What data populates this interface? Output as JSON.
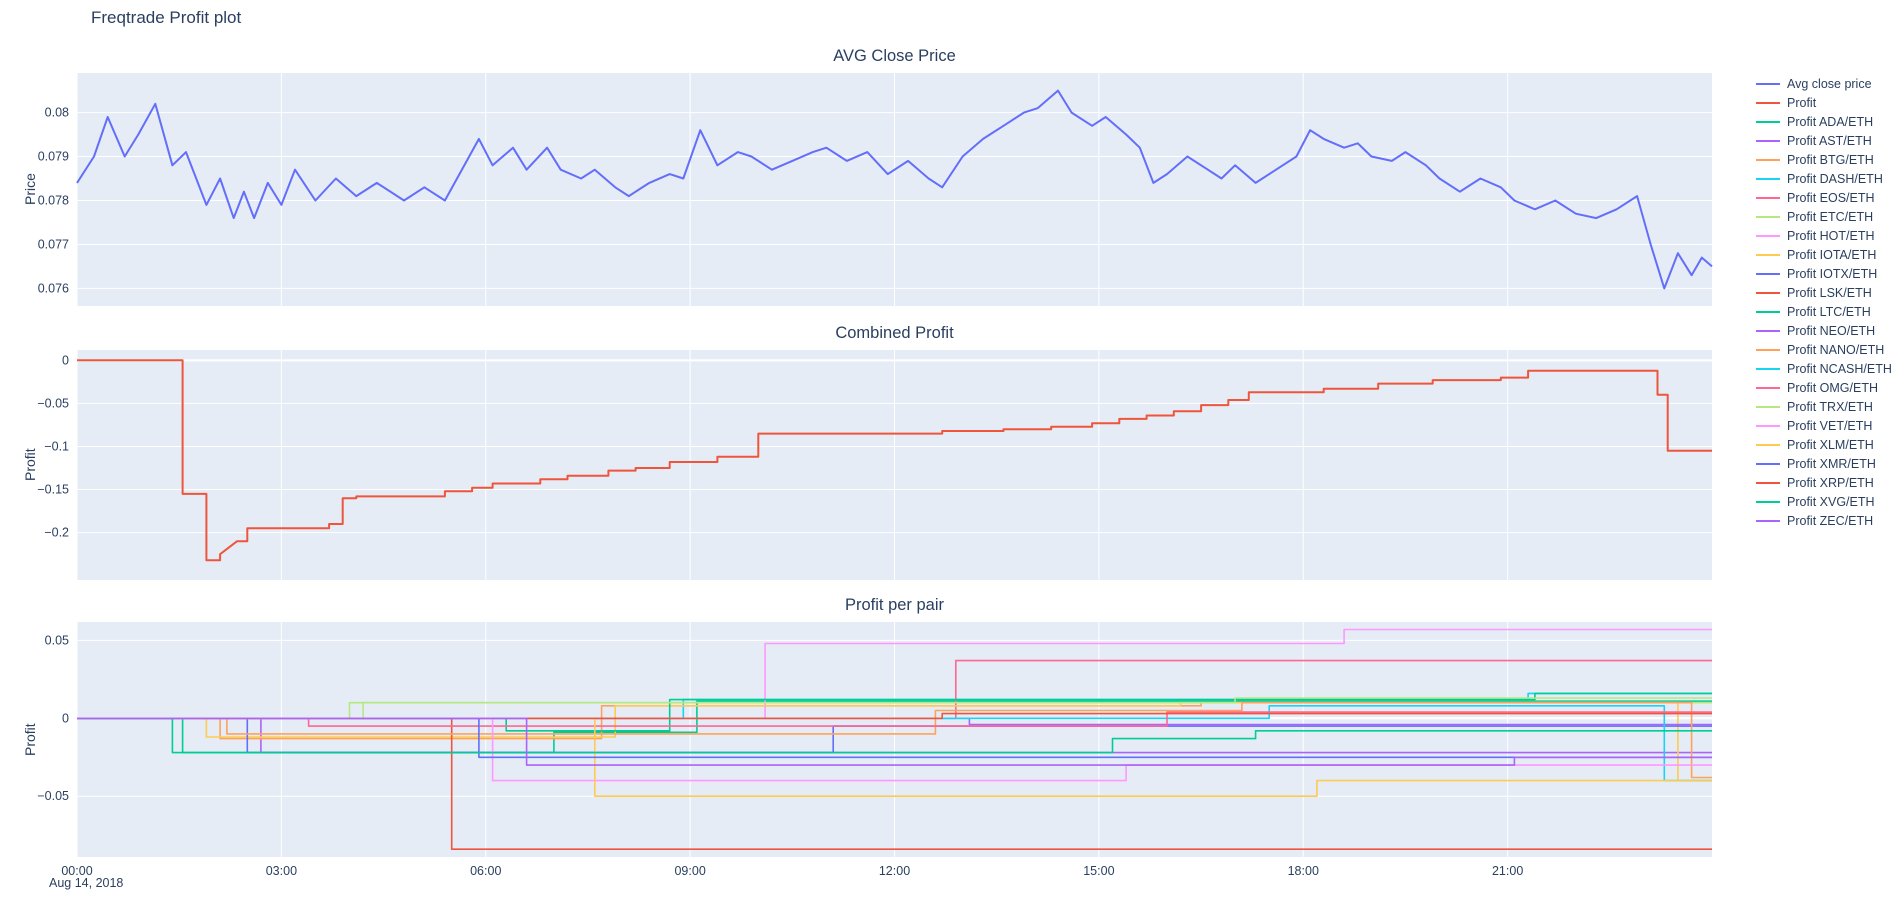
{
  "page": {
    "title": "Freqtrade Profit plot",
    "date_annotation": "Aug 14, 2018",
    "legend_position": "right"
  },
  "colors": {
    "plot_bg": "#E5ECF6",
    "grid": "#FFFFFF",
    "text": "#2A3F5F",
    "avg_close": "#636EFA",
    "profit": "#EF553B"
  },
  "legend": {
    "items": [
      {
        "label": "Avg close price",
        "color": "#636EFA"
      },
      {
        "label": "Profit",
        "color": "#EF553B"
      },
      {
        "label": "Profit ADA/ETH",
        "color": "#00CC96"
      },
      {
        "label": "Profit AST/ETH",
        "color": "#AB63FA"
      },
      {
        "label": "Profit BTG/ETH",
        "color": "#FFA15A"
      },
      {
        "label": "Profit DASH/ETH",
        "color": "#19D3F3"
      },
      {
        "label": "Profit EOS/ETH",
        "color": "#FF6692"
      },
      {
        "label": "Profit ETC/ETH",
        "color": "#B6E880"
      },
      {
        "label": "Profit HOT/ETH",
        "color": "#FF97FF"
      },
      {
        "label": "Profit IOTA/ETH",
        "color": "#FECB52"
      },
      {
        "label": "Profit IOTX/ETH",
        "color": "#636EFA"
      },
      {
        "label": "Profit LSK/ETH",
        "color": "#EF553B"
      },
      {
        "label": "Profit LTC/ETH",
        "color": "#00CC96"
      },
      {
        "label": "Profit NEO/ETH",
        "color": "#AB63FA"
      },
      {
        "label": "Profit NANO/ETH",
        "color": "#FFA15A"
      },
      {
        "label": "Profit NCASH/ETH",
        "color": "#19D3F3"
      },
      {
        "label": "Profit OMG/ETH",
        "color": "#FF6692"
      },
      {
        "label": "Profit TRX/ETH",
        "color": "#B6E880"
      },
      {
        "label": "Profit VET/ETH",
        "color": "#FF97FF"
      },
      {
        "label": "Profit XLM/ETH",
        "color": "#FECB52"
      },
      {
        "label": "Profit XMR/ETH",
        "color": "#636EFA"
      },
      {
        "label": "Profit XRP/ETH",
        "color": "#EF553B"
      },
      {
        "label": "Profit XVG/ETH",
        "color": "#00CC96"
      },
      {
        "label": "Profit ZEC/ETH",
        "color": "#AB63FA"
      }
    ]
  },
  "chart_data": [
    {
      "type": "line",
      "title": "AVG Close Price",
      "xlabel": "",
      "ylabel": "Price",
      "xlim": [
        0,
        24
      ],
      "ylim": [
        0.0756,
        0.0809
      ],
      "xticks": [
        0,
        3,
        6,
        9,
        12,
        15,
        18,
        21
      ],
      "yticks": [
        0.076,
        0.077,
        0.078,
        0.079,
        0.08
      ],
      "ytick_labels": [
        "0.076",
        "0.077",
        "0.078",
        "0.079",
        "0.08"
      ],
      "grid": true,
      "line_width": 2,
      "series": [
        {
          "name": "Avg close price",
          "color": "#636EFA",
          "x": [
            0,
            0.25,
            0.45,
            0.7,
            0.9,
            1.15,
            1.4,
            1.6,
            1.9,
            2.1,
            2.3,
            2.45,
            2.6,
            2.8,
            3.0,
            3.2,
            3.5,
            3.8,
            4.1,
            4.4,
            4.8,
            5.1,
            5.4,
            5.9,
            6.1,
            6.4,
            6.6,
            6.9,
            7.1,
            7.4,
            7.6,
            7.9,
            8.1,
            8.4,
            8.7,
            8.9,
            9.15,
            9.4,
            9.7,
            9.9,
            10.2,
            10.5,
            10.8,
            11.0,
            11.3,
            11.6,
            11.9,
            12.2,
            12.5,
            12.7,
            13.0,
            13.3,
            13.6,
            13.9,
            14.1,
            14.4,
            14.6,
            14.9,
            15.1,
            15.4,
            15.6,
            15.8,
            16.0,
            16.3,
            16.6,
            16.8,
            17.0,
            17.3,
            17.6,
            17.9,
            18.1,
            18.3,
            18.6,
            18.8,
            19.0,
            19.3,
            19.5,
            19.8,
            20.0,
            20.3,
            20.6,
            20.9,
            21.1,
            21.4,
            21.7,
            22.0,
            22.3,
            22.6,
            22.9,
            23.1,
            23.3,
            23.5,
            23.7,
            23.85,
            24
          ],
          "y": [
            0.0784,
            0.079,
            0.0799,
            0.079,
            0.0795,
            0.0802,
            0.0788,
            0.0791,
            0.0779,
            0.0785,
            0.0776,
            0.0782,
            0.0776,
            0.0784,
            0.0779,
            0.0787,
            0.078,
            0.0785,
            0.0781,
            0.0784,
            0.078,
            0.0783,
            0.078,
            0.0794,
            0.0788,
            0.0792,
            0.0787,
            0.0792,
            0.0787,
            0.0785,
            0.0787,
            0.0783,
            0.0781,
            0.0784,
            0.0786,
            0.0785,
            0.0796,
            0.0788,
            0.0791,
            0.079,
            0.0787,
            0.0789,
            0.0791,
            0.0792,
            0.0789,
            0.0791,
            0.0786,
            0.0789,
            0.0785,
            0.0783,
            0.079,
            0.0794,
            0.0797,
            0.08,
            0.0801,
            0.0805,
            0.08,
            0.0797,
            0.0799,
            0.0795,
            0.0792,
            0.0784,
            0.0786,
            0.079,
            0.0787,
            0.0785,
            0.0788,
            0.0784,
            0.0787,
            0.079,
            0.0796,
            0.0794,
            0.0792,
            0.0793,
            0.079,
            0.0789,
            0.0791,
            0.0788,
            0.0785,
            0.0782,
            0.0785,
            0.0783,
            0.078,
            0.0778,
            0.078,
            0.0777,
            0.0776,
            0.0778,
            0.0781,
            0.077,
            0.076,
            0.0768,
            0.0763,
            0.0767,
            0.0765
          ]
        }
      ]
    },
    {
      "type": "line",
      "title": "Combined Profit",
      "xlabel": "",
      "ylabel": "Profit",
      "xlim": [
        0,
        24
      ],
      "ylim": [
        -0.255,
        0.012
      ],
      "xticks": [
        0,
        3,
        6,
        9,
        12,
        15,
        18,
        21
      ],
      "yticks": [
        0,
        -0.05,
        -0.1,
        -0.15,
        -0.2
      ],
      "ytick_labels": [
        "0",
        "−0.05",
        "−0.1",
        "−0.15",
        "−0.2"
      ],
      "grid": true,
      "line_width": 2,
      "series": [
        {
          "name": "Profit",
          "color": "#EF553B",
          "x": [
            0,
            1.55,
            1.55,
            1.9,
            1.9,
            2.1,
            2.1,
            2.35,
            2.5,
            2.5,
            3.7,
            3.7,
            3.9,
            3.9,
            4.1,
            4.1,
            5.4,
            5.4,
            5.8,
            5.8,
            6.1,
            6.1,
            6.8,
            6.8,
            7.2,
            7.2,
            7.8,
            7.8,
            8.2,
            8.2,
            8.7,
            8.7,
            9.4,
            9.4,
            10.0,
            10.0,
            12.7,
            12.7,
            13.6,
            13.6,
            14.3,
            14.3,
            14.9,
            14.9,
            15.3,
            15.3,
            15.7,
            15.7,
            16.1,
            16.1,
            16.5,
            16.5,
            16.9,
            16.9,
            17.2,
            17.2,
            18.3,
            18.3,
            19.1,
            19.1,
            19.9,
            19.9,
            20.9,
            20.9,
            21.3,
            21.3,
            23.2,
            23.2,
            23.35,
            23.35,
            24
          ],
          "y": [
            0,
            0,
            -0.155,
            -0.155,
            -0.232,
            -0.232,
            -0.225,
            -0.21,
            -0.21,
            -0.195,
            -0.195,
            -0.19,
            -0.19,
            -0.16,
            -0.16,
            -0.158,
            -0.158,
            -0.152,
            -0.152,
            -0.148,
            -0.148,
            -0.143,
            -0.143,
            -0.138,
            -0.138,
            -0.134,
            -0.134,
            -0.128,
            -0.128,
            -0.125,
            -0.125,
            -0.118,
            -0.118,
            -0.112,
            -0.112,
            -0.085,
            -0.085,
            -0.082,
            -0.082,
            -0.08,
            -0.08,
            -0.077,
            -0.077,
            -0.073,
            -0.073,
            -0.068,
            -0.068,
            -0.064,
            -0.064,
            -0.059,
            -0.059,
            -0.052,
            -0.052,
            -0.046,
            -0.046,
            -0.037,
            -0.037,
            -0.033,
            -0.033,
            -0.027,
            -0.027,
            -0.023,
            -0.023,
            -0.02,
            -0.02,
            -0.012,
            -0.012,
            -0.04,
            -0.04,
            -0.105,
            -0.105
          ]
        }
      ]
    },
    {
      "type": "line",
      "title": "Profit per pair",
      "xlabel": "",
      "ylabel": "Profit",
      "xlim": [
        0,
        24
      ],
      "ylim": [
        -0.089,
        0.0618
      ],
      "xticks": [
        0,
        3,
        6,
        9,
        12,
        15,
        18,
        21
      ],
      "xtick_labels": [
        "00:00",
        "03:00",
        "06:00",
        "09:00",
        "12:00",
        "15:00",
        "18:00",
        "21:00"
      ],
      "yticks": [
        0.05,
        0,
        -0.05
      ],
      "ytick_labels": [
        "0.05",
        "0",
        "−0.05"
      ],
      "grid": true,
      "line_width": 1.6,
      "series": [
        {
          "name": "Profit ADA/ETH",
          "color": "#00CC96",
          "x": [
            0,
            1.55,
            1.55,
            7.0,
            7.0,
            9.1,
            9.1,
            24
          ],
          "y": [
            0,
            0,
            -0.022,
            -0.022,
            -0.009,
            -0.009,
            0.011,
            0.011
          ]
        },
        {
          "name": "Profit AST/ETH",
          "color": "#AB63FA",
          "x": [
            0,
            2.7,
            2.7,
            24
          ],
          "y": [
            0,
            0,
            -0.022,
            -0.022
          ]
        },
        {
          "name": "Profit BTG/ETH",
          "color": "#FFA15A",
          "x": [
            0,
            2.1,
            2.1,
            7.7,
            7.7,
            16.5,
            16.5,
            24
          ],
          "y": [
            0,
            0,
            -0.013,
            -0.013,
            0.008,
            0.008,
            0.01,
            0.01
          ]
        },
        {
          "name": "Profit DASH/ETH",
          "color": "#19D3F3",
          "x": [
            0,
            8.9,
            8.9,
            21.3,
            21.3,
            24
          ],
          "y": [
            0,
            0,
            0.012,
            0.012,
            0.016,
            0.016
          ]
        },
        {
          "name": "Profit EOS/ETH",
          "color": "#FF6692",
          "x": [
            0,
            12.9,
            12.9,
            24
          ],
          "y": [
            0,
            0,
            0.037,
            0.037
          ]
        },
        {
          "name": "Profit ETC/ETH",
          "color": "#B6E880",
          "x": [
            0,
            4.0,
            4.0,
            24
          ],
          "y": [
            0,
            0,
            0.01,
            0.01
          ]
        },
        {
          "name": "Profit HOT/ETH",
          "color": "#FF97FF",
          "x": [
            0,
            10.1,
            10.1,
            18.6,
            18.6,
            24
          ],
          "y": [
            0,
            0,
            0.048,
            0.048,
            0.057,
            0.057
          ]
        },
        {
          "name": "Profit IOTA/ETH",
          "color": "#FECB52",
          "x": [
            0,
            1.9,
            1.9,
            7.9,
            7.9,
            16.2,
            16.2,
            23.5,
            23.5,
            24
          ],
          "y": [
            0,
            0,
            -0.012,
            -0.012,
            0.008,
            0.008,
            0.01,
            0.01,
            -0.04,
            -0.04
          ]
        },
        {
          "name": "Profit IOTX/ETH",
          "color": "#636EFA",
          "x": [
            0,
            2.5,
            2.5,
            11.1,
            11.1,
            24
          ],
          "y": [
            0,
            0,
            -0.022,
            -0.022,
            -0.005,
            -0.005
          ]
        },
        {
          "name": "Profit LSK/ETH",
          "color": "#EF553B",
          "x": [
            0,
            5.5,
            5.5,
            24
          ],
          "y": [
            0,
            0,
            -0.084,
            -0.084
          ]
        },
        {
          "name": "Profit LTC/ETH",
          "color": "#00CC96",
          "x": [
            0,
            6.3,
            6.3,
            8.7,
            8.7,
            21.4,
            21.4,
            24
          ],
          "y": [
            0,
            0,
            -0.008,
            -0.008,
            0.012,
            0.012,
            0.016,
            0.016
          ]
        },
        {
          "name": "Profit NEO/ETH",
          "color": "#AB63FA",
          "x": [
            0,
            13.1,
            13.1,
            24
          ],
          "y": [
            0,
            0,
            -0.004,
            -0.004
          ]
        },
        {
          "name": "Profit NANO/ETH",
          "color": "#FFA15A",
          "x": [
            0,
            2.2,
            2.2,
            12.6,
            12.6,
            17.1,
            17.1,
            23.7,
            23.7,
            24
          ],
          "y": [
            0,
            0,
            -0.01,
            -0.01,
            0.005,
            0.005,
            0.01,
            0.01,
            -0.038,
            -0.038
          ]
        },
        {
          "name": "Profit NCASH/ETH",
          "color": "#19D3F3",
          "x": [
            0,
            17.5,
            17.5,
            23.3,
            23.3,
            24
          ],
          "y": [
            0,
            0,
            0.008,
            0.008,
            -0.04,
            -0.04
          ]
        },
        {
          "name": "Profit OMG/ETH",
          "color": "#FF6692",
          "x": [
            0,
            3.4,
            3.4,
            16.0,
            16.0,
            24
          ],
          "y": [
            0,
            0,
            -0.005,
            -0.005,
            0.004,
            0.004
          ]
        },
        {
          "name": "Profit TRX/ETH",
          "color": "#B6E880",
          "x": [
            0,
            4.2,
            4.2,
            17.0,
            17.0,
            24
          ],
          "y": [
            0,
            0,
            0.01,
            0.01,
            0.013,
            0.013
          ]
        },
        {
          "name": "Profit VET/ETH",
          "color": "#FF97FF",
          "x": [
            0,
            6.1,
            6.1,
            15.4,
            15.4,
            24
          ],
          "y": [
            0,
            0,
            -0.04,
            -0.04,
            -0.03,
            -0.03
          ]
        },
        {
          "name": "Profit XLM/ETH",
          "color": "#FECB52",
          "x": [
            0,
            7.6,
            7.6,
            18.2,
            18.2,
            24
          ],
          "y": [
            0,
            0,
            -0.05,
            -0.05,
            -0.04,
            -0.04
          ]
        },
        {
          "name": "Profit XMR/ETH",
          "color": "#636EFA",
          "x": [
            0,
            5.9,
            5.9,
            24
          ],
          "y": [
            0,
            0,
            -0.025,
            -0.025
          ]
        },
        {
          "name": "Profit XRP/ETH",
          "color": "#EF553B",
          "x": [
            0,
            12.7,
            12.7,
            24
          ],
          "y": [
            0,
            0,
            0.003,
            0.003
          ]
        },
        {
          "name": "Profit XVG/ETH",
          "color": "#00CC96",
          "x": [
            0,
            1.4,
            1.4,
            15.2,
            15.2,
            17.3,
            17.3,
            24
          ],
          "y": [
            0,
            0,
            -0.022,
            -0.022,
            -0.013,
            -0.013,
            -0.008,
            -0.008
          ]
        },
        {
          "name": "Profit ZEC/ETH",
          "color": "#AB63FA",
          "x": [
            0,
            6.6,
            6.6,
            21.1,
            21.1,
            24
          ],
          "y": [
            0,
            0,
            -0.03,
            -0.03,
            -0.025,
            -0.025
          ]
        }
      ]
    }
  ]
}
